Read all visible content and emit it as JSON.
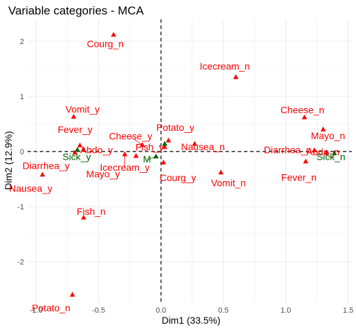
{
  "chart_data": {
    "type": "scatter",
    "title": "Variable categories - MCA",
    "xlabel": "Dim1 (33.5%)",
    "ylabel": "Dim2 (12.9%)",
    "xlim": [
      -1.07,
      1.53
    ],
    "ylim": [
      -2.75,
      2.4
    ],
    "x_ticks": [
      -1.0,
      -0.5,
      0.0,
      0.5,
      1.0,
      1.5
    ],
    "x_tick_labels": [
      "-1.0",
      "-0.5",
      "0.0",
      "0.5",
      "1.0",
      "1.5"
    ],
    "y_ticks": [
      -2,
      -1,
      0,
      1,
      2
    ],
    "y_tick_labels": [
      "-2",
      "-1",
      "0",
      "1",
      "2"
    ],
    "grid": true,
    "reference_lines": {
      "x": 0,
      "y": 0,
      "style": "dashed"
    },
    "colors": {
      "active": "#ff0000",
      "supplementary": "#006400",
      "grid": "#ebebeb"
    },
    "series": [
      {
        "group": "active",
        "color": "#ff0000",
        "points": [
          {
            "label": "Courg_n",
            "x": -0.38,
            "y": 2.12
          },
          {
            "label": "Icecream_n",
            "x": 0.6,
            "y": 1.35
          },
          {
            "label": "Vomit_y",
            "x": -0.7,
            "y": 0.63
          },
          {
            "label": "Cheese_n",
            "x": 1.15,
            "y": 0.62
          },
          {
            "label": "Mayo_n",
            "x": 1.3,
            "y": 0.4
          },
          {
            "label": "Fever_y",
            "x": -0.65,
            "y": 0.11
          },
          {
            "label": "Cheese_y",
            "x": -0.15,
            "y": 0.12
          },
          {
            "label": "Potato_y",
            "x": 0.06,
            "y": 0.2
          },
          {
            "label": "Abdo_y",
            "x": -0.62,
            "y": 0.03
          },
          {
            "label": "Fish_y",
            "x": 0.03,
            "y": 0.08
          },
          {
            "label": "Nausea_n",
            "x": 0.27,
            "y": 0.14
          },
          {
            "label": "Diarrhea_n",
            "x": 1.23,
            "y": 0.02
          },
          {
            "label": "Abdo_n",
            "x": 1.33,
            "y": -0.02
          },
          {
            "label": "Diarrhea_y",
            "x": -0.69,
            "y": -0.02
          },
          {
            "label": "Icecream_y",
            "x": -0.29,
            "y": -0.05
          },
          {
            "label": "Mayo_y",
            "x": -0.2,
            "y": -0.08
          },
          {
            "label": "Courg_y",
            "x": 0.02,
            "y": -0.2
          },
          {
            "label": "Fever_n",
            "x": 1.16,
            "y": -0.18
          },
          {
            "label": "Vomit_n",
            "x": 0.48,
            "y": -0.38
          },
          {
            "label": "Nausea_y",
            "x": -0.95,
            "y": -0.42
          },
          {
            "label": "Fish_n",
            "x": -0.62,
            "y": -1.2
          },
          {
            "label": "Potato_n",
            "x": -0.71,
            "y": -2.6
          }
        ]
      },
      {
        "group": "supplementary",
        "color": "#006400",
        "points": [
          {
            "label": "Sick_y",
            "x": -0.67,
            "y": 0.03
          },
          {
            "label": "Sick_n",
            "x": 1.39,
            "y": -0.03
          },
          {
            "label": "M",
            "x": -0.04,
            "y": -0.09
          },
          {
            "label": "",
            "x": 0.03,
            "y": 0.14
          }
        ]
      }
    ]
  }
}
